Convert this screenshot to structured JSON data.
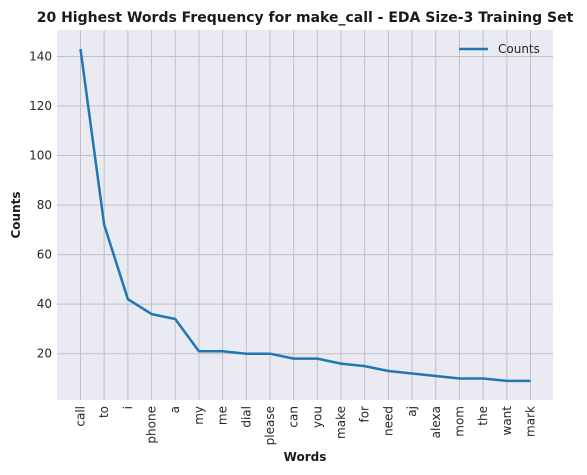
{
  "chart_data": {
    "type": "line",
    "title": "20 Highest Words Frequency for make_call - EDA Size-3 Training Set",
    "xlabel": "Words",
    "ylabel": "Counts",
    "categories": [
      "call",
      "to",
      "i",
      "phone",
      "a",
      "my",
      "me",
      "dial",
      "please",
      "can",
      "you",
      "make",
      "for",
      "need",
      "aj",
      "alexa",
      "mom",
      "the",
      "want",
      "mark"
    ],
    "series": [
      {
        "name": "Counts",
        "values": [
          143,
          72,
          42,
          36,
          34,
          21,
          21,
          20,
          20,
          18,
          18,
          16,
          15,
          13,
          12,
          11,
          10,
          10,
          9,
          9
        ]
      }
    ],
    "yticks": [
      20,
      40,
      60,
      80,
      100,
      120,
      140
    ],
    "ylim": [
      1.3,
      150.7
    ],
    "grid": true,
    "legend_position": "top-right",
    "colors": {
      "line": "#1f77b4",
      "plot_bg": "#eaeaf2",
      "grid": "#c0c0c8"
    }
  }
}
